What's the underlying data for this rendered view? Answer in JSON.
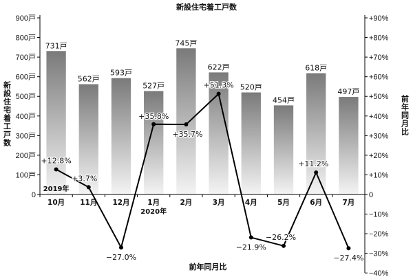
{
  "chart_data": {
    "type": "bar+line",
    "title": "新設住宅着工戸数",
    "xlabel": "前年同月比",
    "ylabel_left": "新設住宅着工戸数",
    "ylabel_right": "前年同月比",
    "categories": [
      "10月",
      "11月",
      "12月",
      "1月",
      "2月",
      "3月",
      "4月",
      "5月",
      "6月",
      "7月"
    ],
    "year_labels": [
      {
        "category_index": 0,
        "text": "2019年"
      },
      {
        "category_index": 3,
        "text": "2020年"
      }
    ],
    "left_axis": {
      "ylim": [
        0,
        900
      ],
      "ticks": [
        {
          "v": 0,
          "label": "0"
        },
        {
          "v": 100,
          "label": "100戸"
        },
        {
          "v": 200,
          "label": "200戸"
        },
        {
          "v": 300,
          "label": "300戸"
        },
        {
          "v": 400,
          "label": "400戸"
        },
        {
          "v": 500,
          "label": "500戸"
        },
        {
          "v": 600,
          "label": "600戸"
        },
        {
          "v": 700,
          "label": "700戸"
        },
        {
          "v": 800,
          "label": "800戸"
        },
        {
          "v": 900,
          "label": "900戸"
        }
      ]
    },
    "right_axis": {
      "ylim": [
        -40,
        90
      ],
      "ticks": [
        {
          "v": 90,
          "label": "+90%"
        },
        {
          "v": 80,
          "label": "+80%"
        },
        {
          "v": 70,
          "label": "+70%"
        },
        {
          "v": 60,
          "label": "+60%"
        },
        {
          "v": 50,
          "label": "+50%"
        },
        {
          "v": 40,
          "label": "+40%"
        },
        {
          "v": 30,
          "label": "+30%"
        },
        {
          "v": 20,
          "label": "+20%"
        },
        {
          "v": 10,
          "label": "+10%"
        },
        {
          "v": 0,
          "label": "0"
        },
        {
          "v": -10,
          "label": "−10%"
        },
        {
          "v": -20,
          "label": "−20%"
        },
        {
          "v": -30,
          "label": "−30%"
        },
        {
          "v": -40,
          "label": "−40%"
        }
      ]
    },
    "bars": {
      "values": [
        731,
        562,
        593,
        527,
        745,
        622,
        520,
        454,
        618,
        497
      ],
      "labels": [
        "731戸",
        "562戸",
        "593戸",
        "527戸",
        "745戸",
        "622戸",
        "520戸",
        "454戸",
        "618戸",
        "497戸"
      ]
    },
    "line": {
      "values": [
        12.8,
        3.7,
        -27.0,
        35.8,
        35.7,
        51.3,
        -21.9,
        -26.2,
        11.2,
        -27.4
      ],
      "labels": [
        "+12.8%",
        "+3.7%",
        "−27.0%",
        "+35.8%",
        "+35.7%",
        "+51.3%",
        "−21.9%",
        "−26.2%",
        "+11.2%",
        "−27.4%"
      ]
    },
    "colors": {
      "bar_top": "#7a7a7a",
      "bar_bottom": "#f4f4f4",
      "line": "#000000"
    },
    "legend": "none",
    "grid": false
  }
}
